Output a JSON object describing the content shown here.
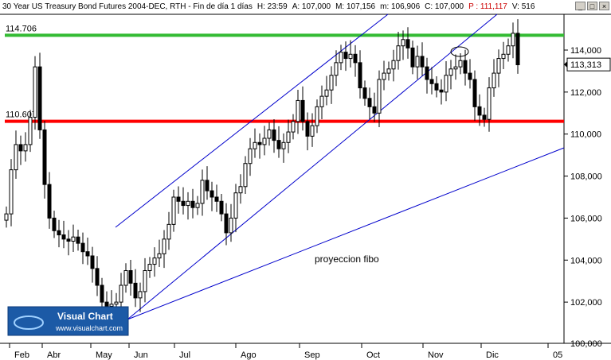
{
  "window": {
    "title_parts": {
      "instrument": "30 Year US Treasury Bond Futures 2004-DEC, RTH - Fin de día 1 días",
      "time": "H: 23:59",
      "open": "A: 107,000",
      "high": "M: 107,156",
      "low": "m: 106,906",
      "close": "C: 107,000",
      "points": "P : 111,117",
      "volume": "V: 516"
    },
    "buttons": [
      "_",
      "□",
      "×"
    ]
  },
  "logo": {
    "name": "Visual Chart",
    "url": "www.visualchart.com"
  },
  "chart_data": {
    "type": "candlestick",
    "title": "30 Year US Treasury Bond Futures 2004-DEC",
    "x_months": [
      "Feb",
      "Abr",
      "May",
      "Jun",
      "Jul",
      "Ago",
      "Sep",
      "Oct",
      "Nov",
      "Dic",
      "05"
    ],
    "y_ticks": [
      "102,000",
      "104,000",
      "106,000",
      "108,000",
      "110,000",
      "112,000",
      "114,000",
      "100,000"
    ],
    "ylim": [
      100,
      116
    ],
    "current_price": "113,313",
    "horizontal_levels": [
      {
        "label": "114.706",
        "value": 114.706,
        "color": "#33bb33"
      },
      {
        "label": "110.607",
        "value": 110.607,
        "color": "#ff0000"
      }
    ],
    "annotation": "proyeccion fibo",
    "annotation_color": "#009900",
    "colors": {
      "up": "#ffffff",
      "down": "#000000",
      "trendline": "#0000cc",
      "axis": "#000000"
    }
  }
}
